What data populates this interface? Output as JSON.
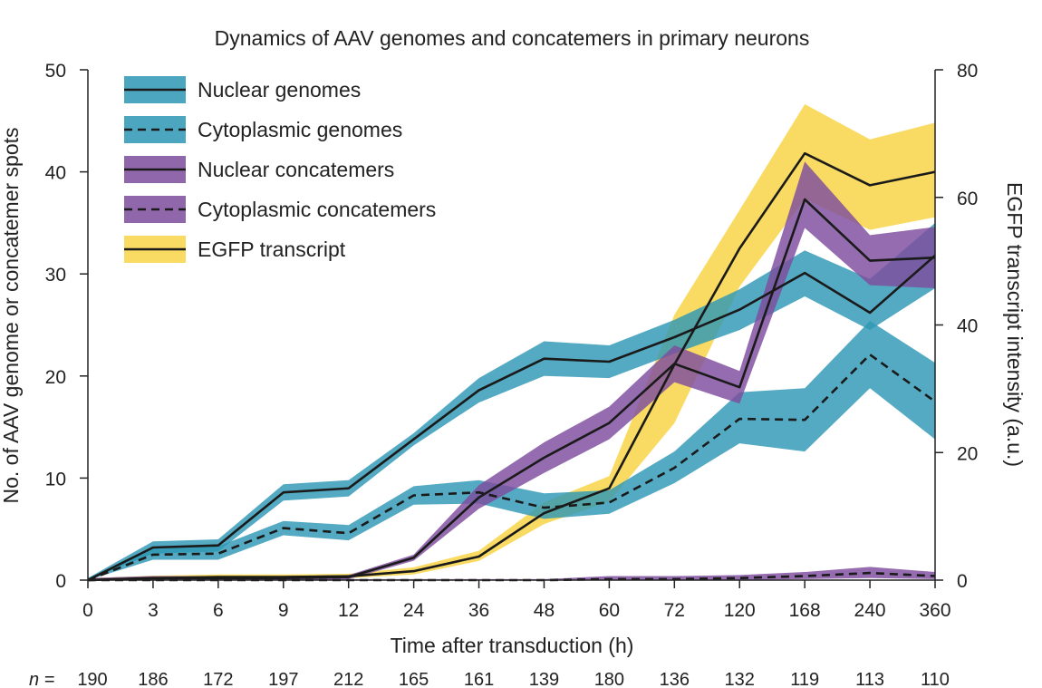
{
  "chart_data": {
    "type": "line",
    "title": "Dynamics of AAV genomes and concatemers in primary neurons",
    "xlabel": "Time after transduction (h)",
    "ylabel_left": "No. of AAV genome or concatemer spots",
    "ylabel_right": "EGFP transcript intensity (a.u.)",
    "x": [
      "0",
      "3",
      "6",
      "9",
      "12",
      "24",
      "36",
      "48",
      "60",
      "72",
      "120",
      "168",
      "240",
      "360"
    ],
    "x_scale": "categorical (equally spaced)",
    "ylim_left": [
      0,
      50
    ],
    "yticks_left": [
      "0",
      "10",
      "20",
      "30",
      "40",
      "50"
    ],
    "ylim_right": [
      0,
      80
    ],
    "yticks_right": [
      "0",
      "20",
      "40",
      "60",
      "80"
    ],
    "grid": false,
    "legend_position": "top-left",
    "n_prefix": "n =",
    "n_values": [
      "190",
      "186",
      "172",
      "197",
      "212",
      "165",
      "161",
      "139",
      "180",
      "136",
      "132",
      "119",
      "113",
      "110"
    ],
    "series": [
      {
        "name": "EGFP transcript",
        "axis": "right",
        "line_style": "solid",
        "band_color": "#F8D548",
        "values": [
          0,
          0.3,
          0.5,
          0.5,
          0.6,
          1.4,
          3.7,
          10.5,
          14.4,
          33.8,
          52,
          66.9,
          61.9,
          64
        ],
        "upper": [
          0.3,
          0.7,
          0.9,
          0.9,
          1.0,
          2.0,
          4.6,
          12.2,
          16.3,
          41.6,
          58,
          74.6,
          69.1,
          71.7
        ],
        "lower": [
          0,
          0,
          0.2,
          0.2,
          0.3,
          0.9,
          3.0,
          8.8,
          12.3,
          24.6,
          46,
          59.8,
          54.9,
          56.9
        ]
      },
      {
        "name": "Nuclear genomes",
        "axis": "left",
        "line_style": "solid",
        "band_color": "#2E97B5",
        "values": [
          0,
          3.2,
          3.4,
          8.6,
          9.0,
          13.8,
          18.6,
          21.7,
          21.4,
          23.8,
          26.5,
          30.1,
          26.2,
          31.8
        ],
        "upper": [
          0.2,
          3.8,
          4.0,
          9.4,
          9.8,
          14.4,
          19.8,
          23.4,
          23.0,
          25.5,
          28.5,
          32.3,
          29.5,
          35.0
        ],
        "lower": [
          0,
          2.6,
          2.8,
          7.8,
          8.2,
          13.2,
          17.4,
          20.0,
          19.8,
          22.2,
          24.5,
          27.8,
          24.5,
          28.6
        ]
      },
      {
        "name": "Cytoplasmic genomes",
        "axis": "left",
        "line_style": "dashed",
        "band_color": "#2E97B5",
        "values": [
          0,
          2.5,
          2.6,
          5.1,
          4.6,
          8.3,
          8.6,
          7.1,
          7.6,
          11.0,
          15.8,
          15.7,
          22.1,
          17.5
        ],
        "upper": [
          0.2,
          3.1,
          3.3,
          5.8,
          5.4,
          9.2,
          9.8,
          8.5,
          8.8,
          12.6,
          18.4,
          18.8,
          25.4,
          21.3
        ],
        "lower": [
          0,
          2.0,
          2.0,
          4.4,
          3.9,
          7.4,
          7.5,
          6.0,
          6.5,
          9.5,
          13.4,
          12.6,
          18.8,
          13.8
        ]
      },
      {
        "name": "Nuclear concatemers",
        "axis": "left",
        "line_style": "solid",
        "band_color": "#7E4C9E",
        "values": [
          0,
          0.2,
          0.2,
          0.2,
          0.3,
          2.2,
          8.1,
          12.0,
          15.4,
          21.2,
          18.9,
          37.3,
          31.3,
          31.6
        ],
        "upper": [
          0.2,
          0.4,
          0.4,
          0.4,
          0.5,
          2.5,
          9.3,
          13.5,
          17.0,
          23.0,
          20.5,
          41.0,
          33.8,
          34.6
        ],
        "lower": [
          0,
          0,
          0,
          0,
          0.1,
          1.9,
          7.0,
          10.5,
          13.8,
          19.4,
          17.3,
          34.5,
          28.9,
          28.6
        ]
      },
      {
        "name": "Cytoplasmic concatemers",
        "axis": "left",
        "line_style": "dashed",
        "band_color": "#7E4C9E",
        "values": [
          0,
          0,
          0,
          0,
          0,
          0,
          0,
          0,
          0.1,
          0.1,
          0.2,
          0.4,
          0.7,
          0.4
        ],
        "upper": [
          0.1,
          0.1,
          0.1,
          0.1,
          0.1,
          0.1,
          0.1,
          0.1,
          0.4,
          0.4,
          0.5,
          0.8,
          1.3,
          0.8
        ],
        "lower": [
          0,
          0,
          0,
          0,
          0,
          0,
          0,
          0,
          0,
          0,
          0,
          0.1,
          0.2,
          0.1
        ]
      }
    ],
    "legend": [
      {
        "label": "Nuclear genomes",
        "band_color": "#2E97B5",
        "line_style": "solid"
      },
      {
        "label": "Cytoplasmic genomes",
        "band_color": "#2E97B5",
        "line_style": "dashed"
      },
      {
        "label": "Nuclear concatemers",
        "band_color": "#7E4C9E",
        "line_style": "solid"
      },
      {
        "label": "Cytoplasmic concatemers",
        "band_color": "#7E4C9E",
        "line_style": "dashed"
      },
      {
        "label": "EGFP transcript",
        "band_color": "#F8D548",
        "line_style": "solid"
      }
    ],
    "line_color": "#1a1a1a"
  }
}
